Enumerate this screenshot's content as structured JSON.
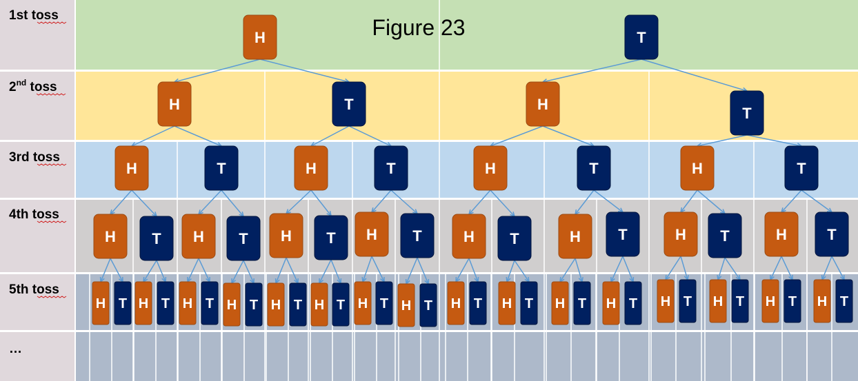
{
  "title": "Figure 23",
  "rows": [
    {
      "label_main": "1st toss",
      "label_sup": ""
    },
    {
      "label_main": "2",
      "label_sup": "nd",
      "label_tail": " toss"
    },
    {
      "label_main": "3rd toss",
      "label_sup": ""
    },
    {
      "label_main": "4th toss",
      "label_sup": ""
    },
    {
      "label_main": "5th toss",
      "label_sup": ""
    },
    {
      "label_main": "…",
      "label_sup": ""
    }
  ],
  "outcomes": {
    "heads": "H",
    "tails": "T"
  },
  "colors": {
    "heads": "#c55a11",
    "tails": "#002060",
    "edge": "#5b9bd5",
    "row_1": "#c5e0b4",
    "row_2": "#ffe699",
    "row_3": "#bdd7ee",
    "row_4": "#d0cece",
    "row_5": "#adb9ca",
    "row_6": "#adb9ca",
    "label_bg": "#e0d8dc"
  }
}
